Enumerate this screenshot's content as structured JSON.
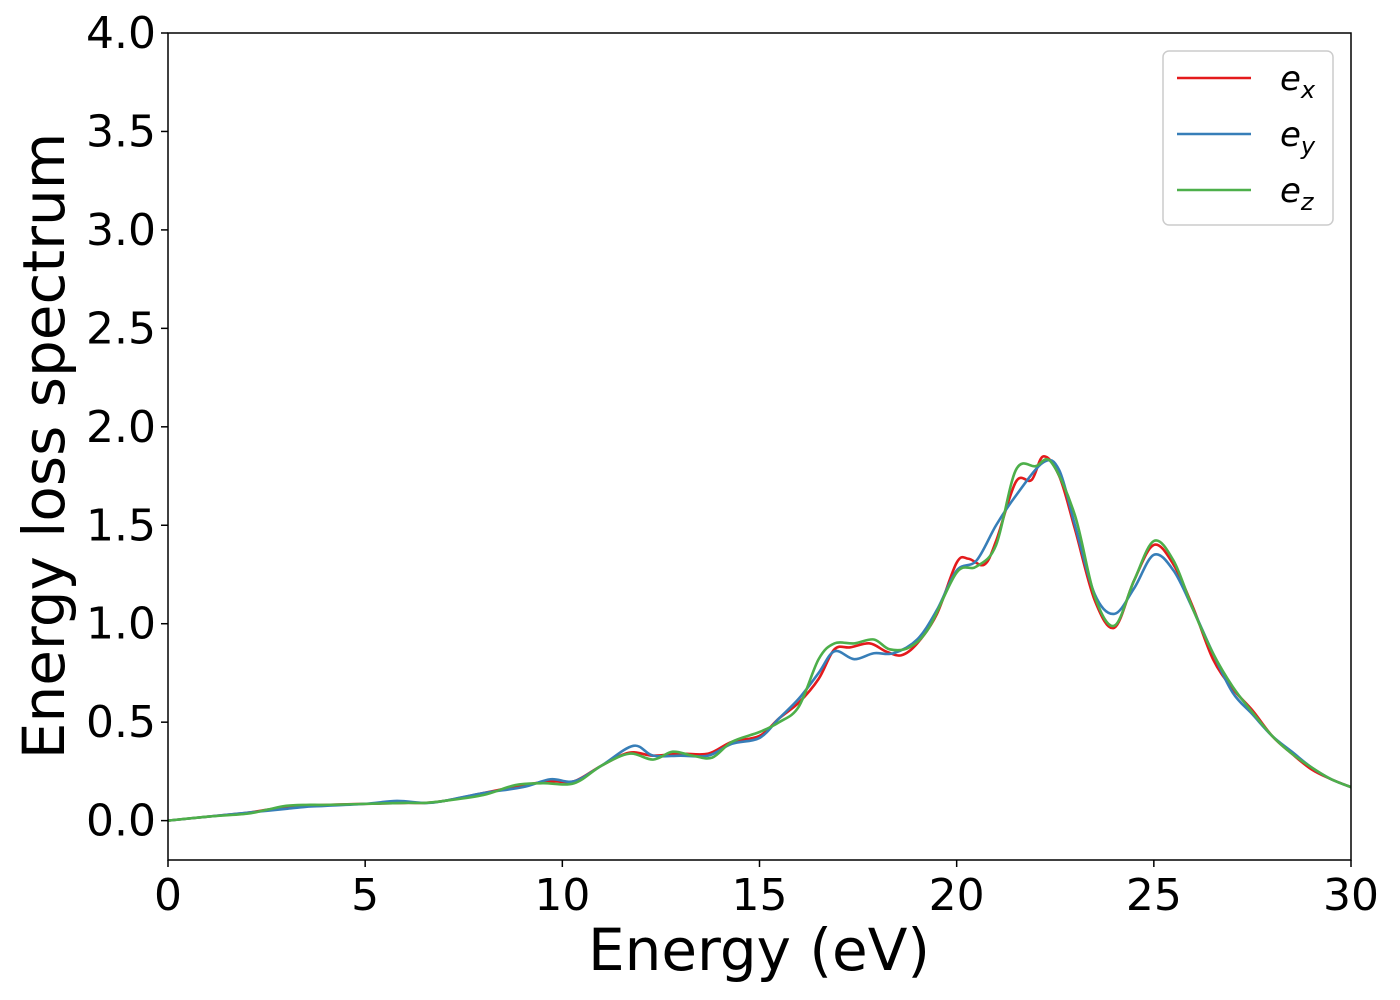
{
  "chart_data": {
    "type": "line",
    "title": "",
    "xlabel": "Energy (eV)",
    "ylabel": "Energy loss spectrum",
    "xlim": [
      0,
      30
    ],
    "ylim": [
      -0.2,
      4.0
    ],
    "xticks": [
      0,
      5,
      10,
      15,
      20,
      25,
      30
    ],
    "xtick_labels": [
      "0",
      "5",
      "10",
      "15",
      "20",
      "25",
      "30"
    ],
    "yticks": [
      0.0,
      0.5,
      1.0,
      1.5,
      2.0,
      2.5,
      3.0,
      3.5,
      4.0
    ],
    "ytick_labels": [
      "0.0",
      "0.5",
      "1.0",
      "1.5",
      "2.0",
      "2.5",
      "3.0",
      "3.5",
      "4.0"
    ],
    "grid": false,
    "legend_position": "top-right",
    "series": [
      {
        "name": "e_x",
        "label_base": "e",
        "label_sub": "x",
        "color": "#e41a1c",
        "points": [
          [
            0,
            0.0
          ],
          [
            1,
            0.02
          ],
          [
            2,
            0.04
          ],
          [
            2.5,
            0.055
          ],
          [
            3,
            0.07
          ],
          [
            3.5,
            0.075
          ],
          [
            4,
            0.08
          ],
          [
            5,
            0.085
          ],
          [
            6,
            0.09
          ],
          [
            6.5,
            0.09
          ],
          [
            7,
            0.1
          ],
          [
            8,
            0.14
          ],
          [
            9,
            0.18
          ],
          [
            9.7,
            0.2
          ],
          [
            10.3,
            0.2
          ],
          [
            11,
            0.28
          ],
          [
            11.7,
            0.345
          ],
          [
            12.3,
            0.33
          ],
          [
            13,
            0.34
          ],
          [
            13.7,
            0.34
          ],
          [
            14.3,
            0.4
          ],
          [
            15,
            0.43
          ],
          [
            15.5,
            0.52
          ],
          [
            16,
            0.6
          ],
          [
            16.5,
            0.72
          ],
          [
            16.9,
            0.87
          ],
          [
            17.3,
            0.88
          ],
          [
            17.8,
            0.9
          ],
          [
            18.2,
            0.86
          ],
          [
            18.6,
            0.84
          ],
          [
            19,
            0.9
          ],
          [
            19.5,
            1.05
          ],
          [
            20,
            1.31
          ],
          [
            20.3,
            1.33
          ],
          [
            20.7,
            1.3
          ],
          [
            21,
            1.42
          ],
          [
            21.5,
            1.72
          ],
          [
            21.9,
            1.73
          ],
          [
            22.2,
            1.85
          ],
          [
            22.6,
            1.75
          ],
          [
            23,
            1.48
          ],
          [
            23.5,
            1.12
          ],
          [
            24,
            0.98
          ],
          [
            24.5,
            1.22
          ],
          [
            25,
            1.4
          ],
          [
            25.5,
            1.3
          ],
          [
            26,
            1.08
          ],
          [
            26.5,
            0.82
          ],
          [
            27,
            0.67
          ],
          [
            27.5,
            0.56
          ],
          [
            28,
            0.43
          ],
          [
            28.5,
            0.34
          ],
          [
            29,
            0.26
          ],
          [
            29.5,
            0.21
          ],
          [
            30,
            0.17
          ]
        ]
      },
      {
        "name": "e_y",
        "label_base": "e",
        "label_sub": "y",
        "color": "#377eb8",
        "points": [
          [
            0,
            0.0
          ],
          [
            1,
            0.02
          ],
          [
            2,
            0.04
          ],
          [
            2.5,
            0.05
          ],
          [
            3,
            0.06
          ],
          [
            3.5,
            0.07
          ],
          [
            4,
            0.075
          ],
          [
            5,
            0.085
          ],
          [
            5.8,
            0.1
          ],
          [
            6.5,
            0.09
          ],
          [
            7,
            0.1
          ],
          [
            8,
            0.14
          ],
          [
            9,
            0.17
          ],
          [
            9.7,
            0.21
          ],
          [
            10.3,
            0.2
          ],
          [
            11,
            0.28
          ],
          [
            11.8,
            0.38
          ],
          [
            12.3,
            0.33
          ],
          [
            13,
            0.33
          ],
          [
            13.7,
            0.33
          ],
          [
            14.3,
            0.39
          ],
          [
            15,
            0.42
          ],
          [
            15.5,
            0.52
          ],
          [
            16,
            0.62
          ],
          [
            16.5,
            0.75
          ],
          [
            16.9,
            0.86
          ],
          [
            17.4,
            0.82
          ],
          [
            17.9,
            0.85
          ],
          [
            18.4,
            0.85
          ],
          [
            19,
            0.92
          ],
          [
            19.5,
            1.07
          ],
          [
            20,
            1.27
          ],
          [
            20.5,
            1.32
          ],
          [
            21,
            1.5
          ],
          [
            21.5,
            1.65
          ],
          [
            22.2,
            1.82
          ],
          [
            22.6,
            1.78
          ],
          [
            23,
            1.5
          ],
          [
            23.5,
            1.15
          ],
          [
            24,
            1.05
          ],
          [
            24.5,
            1.18
          ],
          [
            25,
            1.35
          ],
          [
            25.5,
            1.27
          ],
          [
            26,
            1.07
          ],
          [
            26.5,
            0.85
          ],
          [
            27,
            0.65
          ],
          [
            27.5,
            0.54
          ],
          [
            28,
            0.43
          ],
          [
            28.5,
            0.35
          ],
          [
            29,
            0.27
          ],
          [
            29.5,
            0.21
          ],
          [
            30,
            0.17
          ]
        ]
      },
      {
        "name": "e_z",
        "label_base": "e",
        "label_sub": "z",
        "color": "#4daf4a",
        "points": [
          [
            0,
            0.0
          ],
          [
            1,
            0.02
          ],
          [
            2,
            0.035
          ],
          [
            2.5,
            0.055
          ],
          [
            3,
            0.075
          ],
          [
            3.5,
            0.08
          ],
          [
            4,
            0.08
          ],
          [
            5,
            0.085
          ],
          [
            6,
            0.09
          ],
          [
            6.5,
            0.09
          ],
          [
            7,
            0.1
          ],
          [
            8,
            0.13
          ],
          [
            8.8,
            0.18
          ],
          [
            9.5,
            0.19
          ],
          [
            10.3,
            0.19
          ],
          [
            11,
            0.28
          ],
          [
            11.7,
            0.34
          ],
          [
            12.3,
            0.31
          ],
          [
            12.8,
            0.35
          ],
          [
            13.3,
            0.33
          ],
          [
            13.8,
            0.32
          ],
          [
            14.3,
            0.4
          ],
          [
            15,
            0.45
          ],
          [
            15.5,
            0.5
          ],
          [
            16,
            0.58
          ],
          [
            16.5,
            0.82
          ],
          [
            16.9,
            0.9
          ],
          [
            17.4,
            0.9
          ],
          [
            17.9,
            0.92
          ],
          [
            18.3,
            0.87
          ],
          [
            18.8,
            0.88
          ],
          [
            19.3,
            0.98
          ],
          [
            20,
            1.26
          ],
          [
            20.5,
            1.29
          ],
          [
            21,
            1.4
          ],
          [
            21.5,
            1.78
          ],
          [
            22,
            1.8
          ],
          [
            22.4,
            1.82
          ],
          [
            23,
            1.55
          ],
          [
            23.5,
            1.14
          ],
          [
            24,
            0.99
          ],
          [
            24.5,
            1.22
          ],
          [
            25,
            1.42
          ],
          [
            25.5,
            1.32
          ],
          [
            26,
            1.07
          ],
          [
            26.5,
            0.85
          ],
          [
            27,
            0.68
          ],
          [
            27.5,
            0.55
          ],
          [
            28,
            0.43
          ],
          [
            28.5,
            0.34
          ],
          [
            29,
            0.27
          ],
          [
            29.5,
            0.21
          ],
          [
            30,
            0.17
          ]
        ]
      }
    ]
  }
}
